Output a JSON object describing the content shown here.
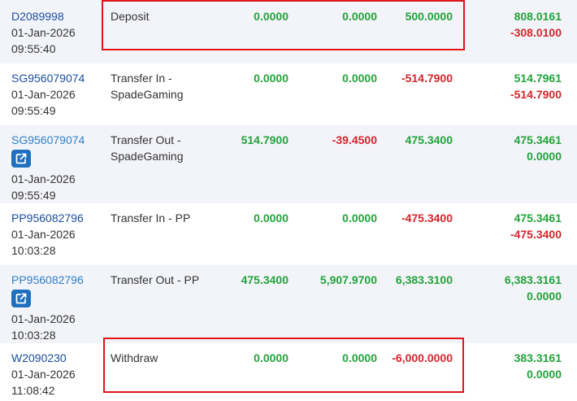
{
  "rows": [
    {
      "id": "D2089998",
      "date": "01-Jan-2026",
      "time": "09:55:40",
      "type1": "Deposit",
      "type2": "",
      "a": "0.0000",
      "b": "0.0000",
      "c": "500.0000",
      "d1": "808.0161",
      "d2": "-308.0100"
    },
    {
      "id": "SG956079074",
      "date": "01-Jan-2026",
      "time": "09:55:49",
      "type1": "Transfer In -",
      "type2": "SpadeGaming",
      "a": "0.0000",
      "b": "0.0000",
      "c": "-514.7900",
      "d1": "514.7961",
      "d2": "-514.7900"
    },
    {
      "id": "SG956079074",
      "date": "01-Jan-2026",
      "time": "09:55:49",
      "type1": "Transfer Out -",
      "type2": "SpadeGaming",
      "a": "514.7900",
      "b": "-39.4500",
      "c": "475.3400",
      "d1": "475.3461",
      "d2": "0.0000"
    },
    {
      "id": "PP956082796",
      "date": "01-Jan-2026",
      "time": "10:03:28",
      "type1": "Transfer In - PP",
      "type2": "",
      "a": "0.0000",
      "b": "0.0000",
      "c": "-475.3400",
      "d1": "475.3461",
      "d2": "-475.3400"
    },
    {
      "id": "PP956082796",
      "date": "01-Jan-2026",
      "time": "10:03:28",
      "type1": "Transfer Out - PP",
      "type2": "",
      "a": "475.3400",
      "b": "5,907.9700",
      "c": "6,383.3100",
      "d1": "6,383.3161",
      "d2": "0.0000"
    },
    {
      "id": "W2090230",
      "date": "01-Jan-2026",
      "time": "11:08:42",
      "type1": "Withdraw",
      "type2": "",
      "a": "0.0000",
      "b": "0.0000",
      "c": "-6,000.0000",
      "d1": "383.3161",
      "d2": "0.0000"
    }
  ],
  "colors": {
    "positive": "#22a33a",
    "negative": "#d4252b",
    "link": "#1a4d9c",
    "highlight": "#e0141b",
    "button": "#1f6fbf"
  },
  "icons": {
    "external": "external-link-icon"
  }
}
